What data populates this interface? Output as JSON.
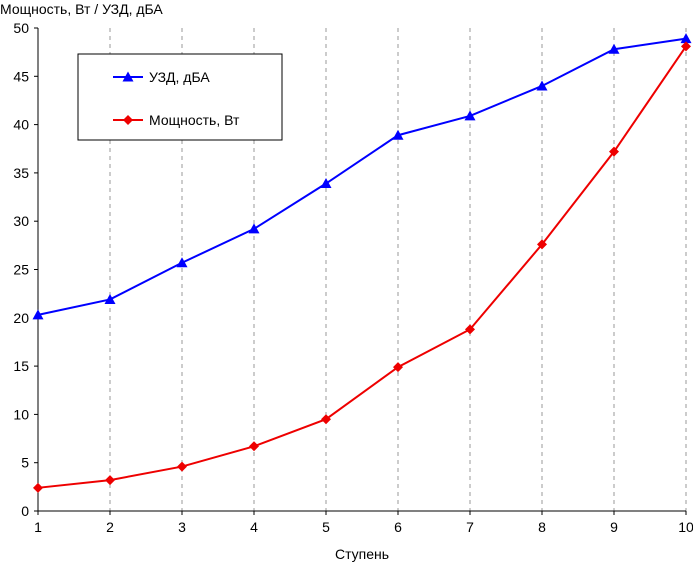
{
  "chart_data": {
    "type": "line",
    "title": "",
    "ylabel": "Мощность, Вт / УЗД, дБА",
    "xlabel": "Ступень",
    "x": [
      1,
      2,
      3,
      4,
      5,
      6,
      7,
      8,
      9,
      10
    ],
    "xlim": [
      1,
      10
    ],
    "ylim": [
      0,
      50
    ],
    "y_ticks": [
      0,
      5,
      10,
      15,
      20,
      25,
      30,
      35,
      40,
      45,
      50
    ],
    "x_tick_labels": [
      "1",
      "2",
      "3",
      "4",
      "5",
      "6",
      "7",
      "8",
      "9",
      "10"
    ],
    "grid": "vertical dashed lines at each x tick",
    "legend_position": "top-left",
    "series": [
      {
        "name": "УЗД, дБА",
        "color": "#0000ff",
        "marker": "triangle",
        "values": [
          20.3,
          21.9,
          25.7,
          29.2,
          33.9,
          38.9,
          40.9,
          44.0,
          47.8,
          48.9
        ]
      },
      {
        "name": "Мощность, Вт",
        "color": "#ee0000",
        "marker": "diamond",
        "values": [
          2.4,
          3.2,
          4.6,
          6.7,
          9.5,
          14.9,
          18.8,
          27.6,
          37.2,
          48.1
        ]
      }
    ]
  }
}
